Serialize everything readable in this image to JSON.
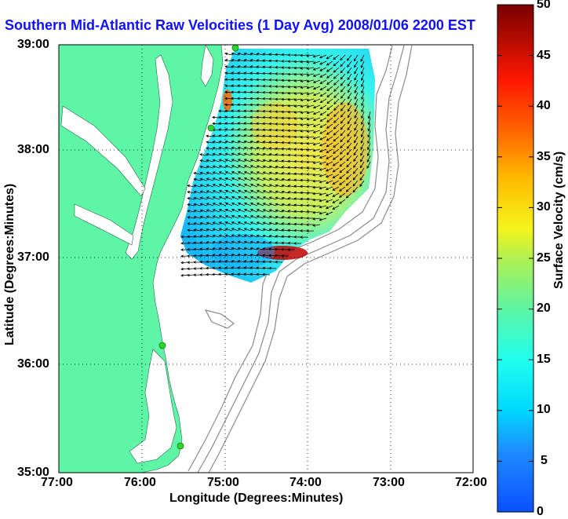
{
  "title": "Southern Mid-Atlantic Raw Velocities (1 Day Avg) 2008/01/06 2200 EST",
  "axes": {
    "xlabel": "Longitude (Degrees:Minutes)",
    "ylabel": "Latitude (Degrees:Minutes)",
    "xticks": [
      "77:00",
      "76:00",
      "75:00",
      "74:00",
      "73:00",
      "72:00"
    ],
    "yticks": [
      "39:00",
      "38:00",
      "37:00",
      "36:00",
      "35:00"
    ]
  },
  "colorbar": {
    "label": "Surface Velocity (cm/s)",
    "ticks": [
      "0",
      "5",
      "10",
      "15",
      "20",
      "25",
      "30",
      "35",
      "40",
      "45",
      "50"
    ],
    "range": [
      0,
      50
    ]
  },
  "map": {
    "extent": {
      "lon": [
        -77,
        -72
      ],
      "lat": [
        35,
        39
      ]
    },
    "grid": true,
    "land_color": "#5ef5a6",
    "contour_color": "#8a8a8a",
    "station_color": "#2bd62b"
  }
}
